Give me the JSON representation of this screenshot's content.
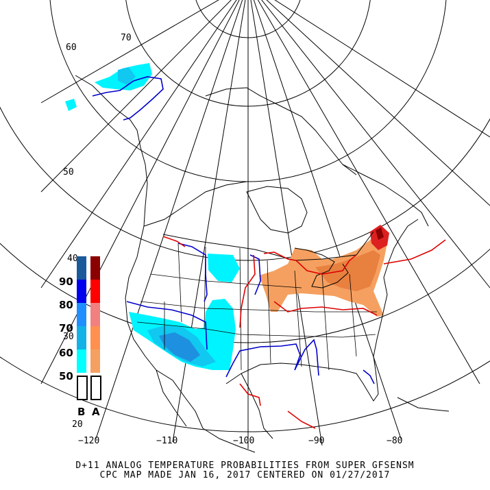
{
  "caption": {
    "line1": "D+11 ANALOG TEMPERATURE PROBABILITIES FROM SUPER GFSENSM",
    "line2": "CPC MAP MADE JAN 16, 2017 CENTERED ON 01/27/2017"
  },
  "grid_labels": {
    "lat": [
      "60",
      "70",
      "50",
      "40",
      "30",
      "20"
    ],
    "lon": [
      "−120",
      "−110",
      "−100",
      "−90",
      "−80"
    ]
  },
  "legend": {
    "levels": [
      "90",
      "80",
      "70",
      "60",
      "50"
    ],
    "below_label": "B",
    "above_label": "A",
    "below_colors": [
      "#1a5a9a",
      "#0000ee",
      "#1f8fff",
      "#12b2e6",
      "#00ffff"
    ],
    "above_colors": [
      "#8b0000",
      "#ff0000",
      "#f28080",
      "#ff9050",
      "#f5a060"
    ]
  },
  "colors": {
    "state_line": "#000000",
    "blue_contour": "#0000cc",
    "red_contour": "#dd0000",
    "cold_light": "#00f4ff",
    "cold_mid": "#10c8f0",
    "cold_dark": "#1e90e0",
    "warm_light": "#f5a060",
    "warm_mid": "#e88040",
    "warm_dark": "#dd2020"
  }
}
